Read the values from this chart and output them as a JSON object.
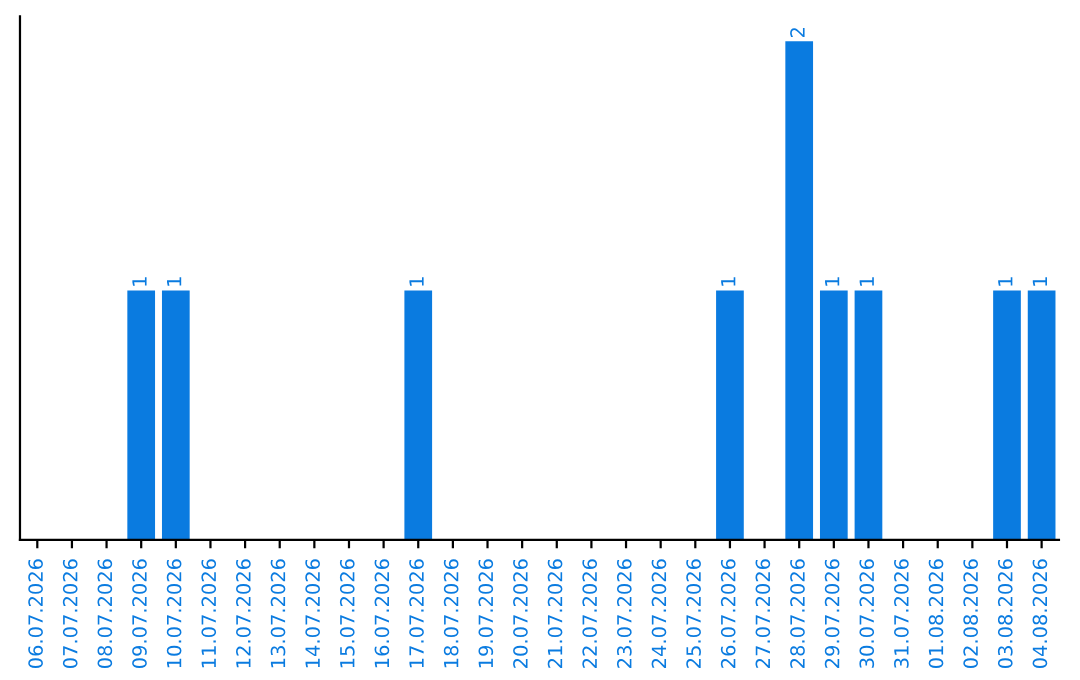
{
  "chart_data": {
    "type": "bar",
    "categories": [
      "06.07.2026",
      "07.07.2026",
      "08.07.2026",
      "09.07.2026",
      "10.07.2026",
      "11.07.2026",
      "12.07.2026",
      "13.07.2026",
      "14.07.2026",
      "15.07.2026",
      "16.07.2026",
      "17.07.2026",
      "18.07.2026",
      "19.07.2026",
      "20.07.2026",
      "21.07.2026",
      "22.07.2026",
      "23.07.2026",
      "24.07.2026",
      "25.07.2026",
      "26.07.2026",
      "27.07.2026",
      "28.07.2026",
      "29.07.2026",
      "30.07.2026",
      "31.07.2026",
      "01.08.2026",
      "02.08.2026",
      "03.08.2026",
      "04.08.2026"
    ],
    "values": [
      0,
      0,
      0,
      1,
      1,
      0,
      0,
      0,
      0,
      0,
      0,
      1,
      0,
      0,
      0,
      0,
      0,
      0,
      0,
      0,
      1,
      0,
      2,
      1,
      1,
      0,
      0,
      0,
      1,
      1
    ],
    "value_labels": [
      null,
      null,
      null,
      "1",
      "1",
      null,
      null,
      null,
      null,
      null,
      null,
      "1",
      null,
      null,
      null,
      null,
      null,
      null,
      null,
      null,
      "1",
      null,
      "2",
      "1",
      "1",
      null,
      null,
      null,
      "1",
      "1"
    ],
    "color": "#0a7be0",
    "grid": false,
    "tick_labels": "x"
  }
}
